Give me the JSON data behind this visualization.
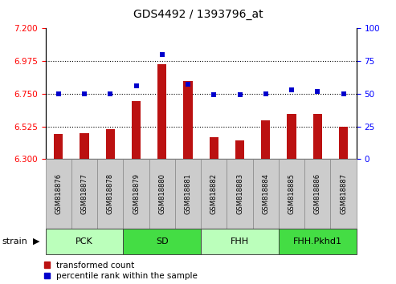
{
  "title": "GDS4492 / 1393796_at",
  "samples": [
    "GSM818876",
    "GSM818877",
    "GSM818878",
    "GSM818879",
    "GSM818880",
    "GSM818881",
    "GSM818882",
    "GSM818883",
    "GSM818884",
    "GSM818885",
    "GSM818886",
    "GSM818887"
  ],
  "red_values": [
    6.475,
    6.477,
    6.508,
    6.7,
    6.955,
    6.84,
    6.453,
    6.43,
    6.565,
    6.61,
    6.61,
    6.522
  ],
  "blue_values": [
    50,
    50,
    50,
    56,
    80,
    57,
    49,
    49,
    50,
    53,
    52,
    50
  ],
  "ylim_left": [
    6.3,
    7.2
  ],
  "ylim_right": [
    0,
    100
  ],
  "yticks_left": [
    6.3,
    6.525,
    6.75,
    6.975,
    7.2
  ],
  "yticks_right": [
    0,
    25,
    50,
    75,
    100
  ],
  "hlines": [
    6.525,
    6.75,
    6.975
  ],
  "groups": [
    {
      "label": "PCK",
      "start": 0,
      "end": 3,
      "color": "#bbffbb"
    },
    {
      "label": "SD",
      "start": 3,
      "end": 6,
      "color": "#44dd44"
    },
    {
      "label": "FHH",
      "start": 6,
      "end": 9,
      "color": "#bbffbb"
    },
    {
      "label": "FHH.Pkhd1",
      "start": 9,
      "end": 12,
      "color": "#44dd44"
    }
  ],
  "bar_bottom": 6.3,
  "bar_width": 0.35,
  "red_color": "#bb1111",
  "blue_color": "#0000cc",
  "tick_bg_color": "#cccccc",
  "legend_red": "transformed count",
  "legend_blue": "percentile rank within the sample",
  "strain_label": "strain"
}
